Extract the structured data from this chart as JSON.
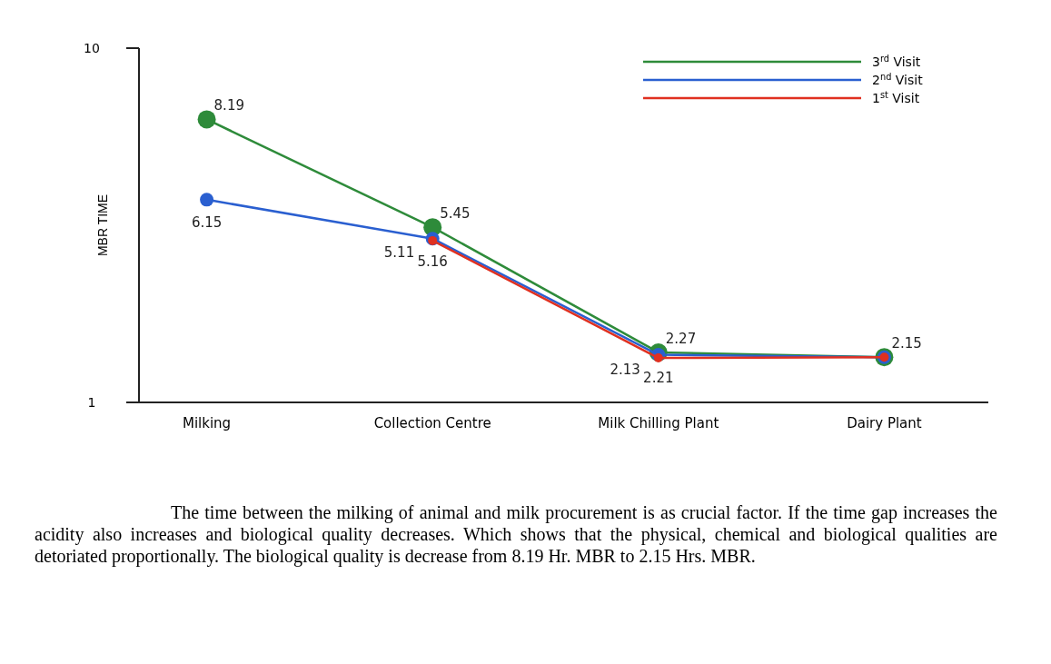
{
  "chart_data": {
    "type": "line",
    "ylabel": "MBR TIME",
    "categories": [
      "Milking",
      "Collection Centre",
      "Milk Chilling Plant",
      "Dairy Plant"
    ],
    "series": [
      {
        "name": "3$^{rd}$ Visit",
        "color": "#2e8b3a",
        "values": [
          8.19,
          5.45,
          2.27,
          2.15
        ],
        "value_labels": [
          "8.19",
          "5.45",
          "2.27",
          "2.15"
        ]
      },
      {
        "name": "2$^{nd}$ Visit",
        "color": "#2a5fd0",
        "values": [
          6.15,
          5.16,
          2.21,
          2.15
        ],
        "value_labels": [
          "6.15",
          "5.16",
          "2.21",
          null
        ]
      },
      {
        "name": "1$^{st}$ Visit",
        "color": "#e03020",
        "values": [
          null,
          5.11,
          2.13,
          2.15
        ],
        "value_labels": [
          null,
          "5.11",
          "2.13",
          null
        ]
      }
    ],
    "ylim": [
      1,
      10
    ],
    "yticks": [
      1,
      10
    ],
    "grid": false,
    "legend": "top right",
    "marker": "circle",
    "line_style": "solid",
    "annotations": [
      "The time  between the milking of animal and milk procurement is as crucial factor.  If the time gap increases the acidity also increases and biological quality decreases. Which shows that the physical, chemical and biological qualities are detoriated proportionally.  The biological quality is decrease from 8.19 Hr. MBR to 2.15 Hrs. MBR."
    ]
  }
}
